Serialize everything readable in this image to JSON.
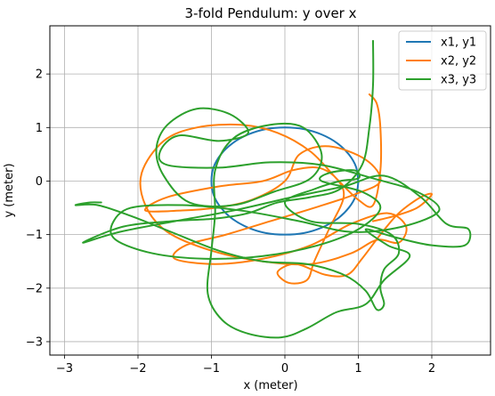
{
  "chart_data": {
    "type": "line",
    "title": "3-fold Pendulum: y over x",
    "xlabel": "x (meter)",
    "ylabel": "y (meter)",
    "xlim": [
      -3.2,
      2.8
    ],
    "ylim": [
      -3.25,
      2.9
    ],
    "xticks": [
      -3,
      -2,
      -1,
      0,
      1,
      2
    ],
    "yticks": [
      -3,
      -2,
      -1,
      0,
      1,
      2
    ],
    "xtick_labels": [
      "−3",
      "−2",
      "−1",
      "0",
      "1",
      "2"
    ],
    "ytick_labels": [
      "−3",
      "−2",
      "−1",
      "0",
      "1",
      "2"
    ],
    "grid": true,
    "legend_position": "top-right",
    "series": [
      {
        "name": "x1, y1",
        "color": "#1f77b4",
        "points": [
          [
            1.0,
            -0.02
          ],
          [
            0.97,
            0.26
          ],
          [
            0.87,
            0.5
          ],
          [
            0.71,
            0.71
          ],
          [
            0.5,
            0.87
          ],
          [
            0.26,
            0.97
          ],
          [
            0.0,
            1.0
          ],
          [
            -0.26,
            0.97
          ],
          [
            -0.5,
            0.87
          ],
          [
            -0.71,
            0.71
          ],
          [
            -0.87,
            0.5
          ],
          [
            -0.97,
            0.26
          ],
          [
            -1.0,
            0.0
          ],
          [
            -0.97,
            -0.26
          ],
          [
            -0.87,
            -0.5
          ],
          [
            -0.71,
            -0.71
          ],
          [
            -0.5,
            -0.87
          ],
          [
            -0.26,
            -0.97
          ],
          [
            0.0,
            -1.0
          ],
          [
            0.26,
            -0.97
          ],
          [
            0.5,
            -0.87
          ],
          [
            0.71,
            -0.71
          ],
          [
            0.87,
            -0.5
          ],
          [
            0.97,
            -0.26
          ],
          [
            1.0,
            -0.02
          ]
        ]
      },
      {
        "name": "x2, y2",
        "color": "#ff7f0e",
        "points": [
          [
            1.15,
            1.62
          ],
          [
            1.25,
            1.45
          ],
          [
            1.3,
            1.0
          ],
          [
            1.3,
            0.2
          ],
          [
            1.2,
            -0.45
          ],
          [
            1.0,
            -0.35
          ],
          [
            0.7,
            0.05
          ],
          [
            0.35,
            0.55
          ],
          [
            -0.1,
            0.9
          ],
          [
            -0.6,
            1.05
          ],
          [
            -1.2,
            1.0
          ],
          [
            -1.65,
            0.75
          ],
          [
            -1.95,
            0.15
          ],
          [
            -1.9,
            -0.45
          ],
          [
            -1.6,
            -0.95
          ],
          [
            -1.0,
            -1.3
          ],
          [
            -0.3,
            -1.5
          ],
          [
            0.35,
            -1.55
          ],
          [
            0.9,
            -1.35
          ],
          [
            1.25,
            -1.1
          ],
          [
            1.55,
            -1.15
          ],
          [
            1.65,
            -0.85
          ],
          [
            1.4,
            -0.6
          ],
          [
            0.9,
            -0.8
          ],
          [
            0.35,
            -1.2
          ],
          [
            -0.3,
            -1.45
          ],
          [
            -0.95,
            -1.55
          ],
          [
            -1.5,
            -1.45
          ],
          [
            -1.35,
            -1.2
          ],
          [
            -0.8,
            -1.0
          ],
          [
            -0.2,
            -0.75
          ],
          [
            0.4,
            -0.5
          ],
          [
            0.95,
            -0.25
          ],
          [
            1.3,
            0.0
          ],
          [
            1.1,
            0.4
          ],
          [
            0.6,
            0.65
          ],
          [
            0.2,
            0.5
          ],
          [
            0.0,
            0.0
          ],
          [
            -0.45,
            -0.35
          ],
          [
            -0.95,
            -0.5
          ],
          [
            -1.4,
            -0.55
          ],
          [
            -1.9,
            -0.55
          ],
          [
            -1.6,
            -0.3
          ],
          [
            -0.9,
            -0.1
          ],
          [
            -0.3,
            0.0
          ],
          [
            0.1,
            0.2
          ],
          [
            0.45,
            0.25
          ],
          [
            0.7,
            0.05
          ],
          [
            0.8,
            -0.3
          ],
          [
            0.6,
            -0.9
          ],
          [
            0.4,
            -1.5
          ],
          [
            0.3,
            -1.85
          ],
          [
            0.05,
            -1.9
          ],
          [
            -0.1,
            -1.7
          ],
          [
            0.15,
            -1.55
          ],
          [
            0.55,
            -1.75
          ],
          [
            0.85,
            -1.75
          ],
          [
            1.05,
            -1.45
          ],
          [
            1.3,
            -1.0
          ],
          [
            1.55,
            -0.6
          ],
          [
            1.85,
            -0.3
          ],
          [
            2.0,
            -0.25
          ],
          [
            1.8,
            -0.5
          ],
          [
            1.5,
            -0.65
          ],
          [
            1.2,
            -0.75
          ]
        ]
      },
      {
        "name": "x3, y3",
        "color": "#2ca02c",
        "points": [
          [
            1.2,
            2.62
          ],
          [
            1.2,
            1.8
          ],
          [
            1.15,
            1.0
          ],
          [
            1.05,
            0.3
          ],
          [
            0.75,
            -0.15
          ],
          [
            0.35,
            -0.3
          ],
          [
            -0.1,
            -0.4
          ],
          [
            -0.5,
            -0.6
          ],
          [
            -0.95,
            -0.7
          ],
          [
            -1.55,
            -0.75
          ],
          [
            -2.2,
            -0.85
          ],
          [
            -2.75,
            -1.15
          ],
          [
            -2.25,
            -0.95
          ],
          [
            -1.5,
            -0.75
          ],
          [
            -0.7,
            -0.55
          ],
          [
            0.1,
            -0.3
          ],
          [
            0.8,
            -0.1
          ],
          [
            1.35,
            0.1
          ],
          [
            1.85,
            -0.3
          ],
          [
            2.2,
            -0.8
          ],
          [
            2.5,
            -0.9
          ],
          [
            2.45,
            -1.2
          ],
          [
            2.0,
            -1.2
          ],
          [
            1.5,
            -1.05
          ],
          [
            1.1,
            -0.9
          ],
          [
            1.4,
            -1.2
          ],
          [
            1.7,
            -1.4
          ],
          [
            1.35,
            -1.85
          ],
          [
            1.1,
            -2.3
          ],
          [
            0.7,
            -2.45
          ],
          [
            0.3,
            -2.75
          ],
          [
            -0.05,
            -2.92
          ],
          [
            -0.5,
            -2.85
          ],
          [
            -0.85,
            -2.6
          ],
          [
            -1.05,
            -2.1
          ],
          [
            -1.0,
            -1.3
          ],
          [
            -0.95,
            -0.6
          ],
          [
            -0.95,
            0.2
          ],
          [
            -0.7,
            0.8
          ],
          [
            -0.2,
            1.05
          ],
          [
            0.25,
            1.0
          ],
          [
            0.5,
            0.5
          ],
          [
            0.35,
            0.05
          ],
          [
            -0.15,
            -0.2
          ],
          [
            -0.7,
            -0.45
          ],
          [
            -1.3,
            -0.4
          ],
          [
            -1.65,
            0.1
          ],
          [
            -1.75,
            0.6
          ],
          [
            -1.6,
            1.05
          ],
          [
            -1.2,
            1.35
          ],
          [
            -0.75,
            1.25
          ],
          [
            -0.5,
            0.9
          ],
          [
            -0.9,
            0.75
          ],
          [
            -1.45,
            0.85
          ],
          [
            -1.7,
            0.55
          ],
          [
            -1.6,
            0.3
          ],
          [
            -0.9,
            0.25
          ],
          [
            -0.2,
            0.35
          ],
          [
            0.5,
            0.3
          ],
          [
            1.2,
            0.05
          ],
          [
            1.8,
            -0.2
          ],
          [
            2.1,
            -0.55
          ],
          [
            1.6,
            -0.85
          ],
          [
            0.9,
            -0.95
          ],
          [
            0.2,
            -0.75
          ],
          [
            -0.6,
            -0.55
          ],
          [
            -1.4,
            -0.45
          ],
          [
            -2.1,
            -0.5
          ],
          [
            -2.35,
            -0.8
          ],
          [
            -2.3,
            -1.1
          ],
          [
            -1.8,
            -1.35
          ],
          [
            -1.1,
            -1.45
          ],
          [
            -0.3,
            -1.4
          ],
          [
            0.45,
            -1.2
          ],
          [
            1.0,
            -0.9
          ],
          [
            1.3,
            -0.5
          ],
          [
            1.05,
            -0.2
          ],
          [
            0.5,
            0.0
          ],
          [
            0.6,
            0.15
          ],
          [
            0.95,
            0.2
          ],
          [
            1.0,
            0.05
          ],
          [
            0.75,
            0.0
          ],
          [
            0.4,
            -0.15
          ],
          [
            0.0,
            -0.4
          ],
          [
            0.35,
            -0.75
          ],
          [
            1.0,
            -0.8
          ],
          [
            1.45,
            -1.0
          ],
          [
            1.55,
            -1.35
          ],
          [
            1.35,
            -1.65
          ],
          [
            1.3,
            -2.0
          ],
          [
            1.35,
            -2.3
          ],
          [
            1.25,
            -2.4
          ],
          [
            1.1,
            -2.05
          ],
          [
            0.8,
            -1.75
          ],
          [
            0.3,
            -1.55
          ],
          [
            -0.3,
            -1.5
          ],
          [
            -0.9,
            -1.3
          ],
          [
            -1.55,
            -0.95
          ],
          [
            -2.1,
            -0.65
          ],
          [
            -2.55,
            -0.45
          ],
          [
            -2.85,
            -0.45
          ],
          [
            -2.65,
            -0.4
          ],
          [
            -2.5,
            -0.4
          ]
        ]
      }
    ]
  }
}
